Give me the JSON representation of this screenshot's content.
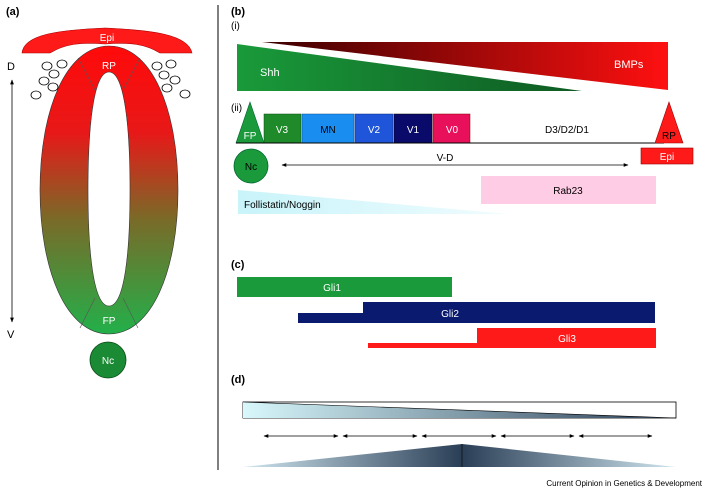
{
  "panel_a": {
    "label": "(a)",
    "epi": "Epi",
    "rp": "RP",
    "fp": "FP",
    "nc": "Nc",
    "axis_top": "D",
    "axis_bottom": "V"
  },
  "panel_b": {
    "label": "(b)",
    "sub_i": "(i)",
    "sub_ii": "(ii)",
    "shh": "Shh",
    "bmps": "BMPs",
    "fp": "FP",
    "domains": [
      "V3",
      "MN",
      "V2",
      "V1",
      "V0"
    ],
    "dorsal_domains": "D3/D2/D1",
    "rp": "RP",
    "epi": "Epi",
    "nc": "Nc",
    "axis": "V-D",
    "rab23": "Rab23",
    "follistatin": "Follistatin/Noggin"
  },
  "panel_c": {
    "label": "(c)",
    "gli1": "Gli1",
    "gli2": "Gli2",
    "gli3": "Gli3"
  },
  "panel_d": {
    "label": "(d)"
  },
  "colors": {
    "red": "#ff1a1a",
    "green": "#1a9a3a",
    "navy": "#0a1a6e",
    "pink": "#ffcce6",
    "light_cyan": "#d8f8fc"
  },
  "credit": "Current Opinion in Genetics & Development"
}
